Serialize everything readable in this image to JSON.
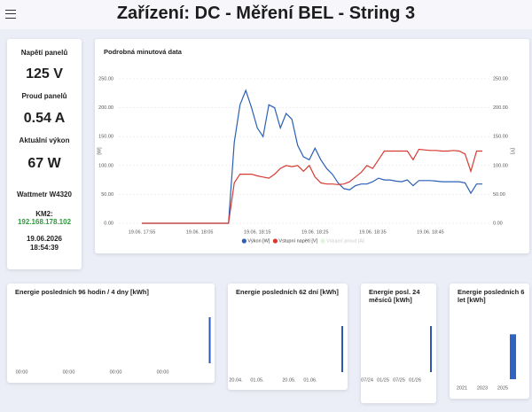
{
  "header": {
    "title": "Zařízení: DC - Měření BEL - String 3"
  },
  "panel": {
    "voltage_label": "Napětí panelů",
    "voltage": "125 V",
    "current_label": "Proud panelů",
    "current": "0.54 A",
    "power_label": "Aktuální výkon",
    "power": "67 W",
    "device": "Wattmetr W4320",
    "km_label": "KM2:",
    "ip": "192.168.178.102",
    "date": "19.06.2026",
    "time": "18:54:39"
  },
  "chart_data": [
    {
      "type": "line",
      "title": "Podrobná minutová data",
      "ylabel": "[W]",
      "y2label": "[V]",
      "categories": [
        null,
        null,
        null,
        null,
        "19.06. 17:55",
        null,
        null,
        null,
        null,
        null,
        null,
        null,
        null,
        null,
        "19.06. 18:05",
        null,
        null,
        null,
        null,
        null,
        null,
        null,
        null,
        null,
        "19.06. 18:15",
        null,
        null,
        null,
        null,
        null,
        null,
        null,
        null,
        null,
        "19.06. 18:25",
        null,
        null,
        null,
        null,
        null,
        null,
        null,
        null,
        null,
        "19.06. 18:35",
        null,
        null,
        null,
        null,
        null,
        null,
        null,
        null,
        null,
        "19.06. 18:45",
        null,
        null,
        null,
        null,
        null,
        null,
        null,
        null,
        null
      ],
      "series": [
        {
          "name": "Výkon [W]",
          "color": "#2a5fb5",
          "values": [
            null,
            null,
            null,
            null,
            0,
            0,
            0,
            0,
            0,
            0,
            0,
            0,
            0,
            0,
            0,
            0,
            0,
            0,
            0,
            0,
            140,
            205,
            230,
            200,
            165,
            150,
            205,
            200,
            165,
            190,
            180,
            135,
            115,
            110,
            130,
            110,
            95,
            85,
            70,
            60,
            58,
            65,
            68,
            68,
            72,
            78,
            75,
            75,
            73,
            72,
            75,
            65,
            74,
            74,
            74,
            73,
            72,
            72,
            72,
            72,
            70,
            52,
            68,
            68
          ]
        },
        {
          "name": "Vstupní napětí [V]",
          "color": "#d83a32",
          "axis": "y2",
          "values": [
            null,
            null,
            null,
            null,
            0,
            0,
            0,
            0,
            0,
            0,
            0,
            0,
            0,
            0,
            0,
            0,
            0,
            0,
            0,
            0,
            70,
            85,
            85,
            85,
            82,
            80,
            78,
            85,
            95,
            100,
            98,
            100,
            90,
            100,
            80,
            70,
            68,
            68,
            67,
            68,
            72,
            80,
            88,
            100,
            95,
            110,
            125,
            125,
            125,
            125,
            125,
            110,
            128,
            127,
            126,
            126,
            125,
            125,
            126,
            125,
            120,
            90,
            125,
            125
          ]
        },
        {
          "name": "Vstupní proud [A]",
          "color": "#c6ecc0",
          "hidden": true,
          "values": [
            null,
            null,
            null,
            null,
            null,
            null,
            null,
            null,
            null,
            null,
            null,
            null,
            null,
            null,
            null,
            null,
            null,
            null,
            null,
            null,
            null,
            null,
            null,
            null,
            null,
            null,
            null,
            null,
            null,
            null,
            null,
            null,
            null,
            null,
            null,
            null,
            null,
            null,
            null,
            null,
            null,
            null,
            null,
            null,
            null,
            null,
            null,
            null,
            null,
            null,
            null,
            null,
            null,
            null,
            null,
            null,
            null,
            null,
            null,
            null,
            null,
            null,
            null,
            null
          ]
        }
      ],
      "ylim": [
        0,
        250
      ],
      "yticks": [
        {
          "value": 0,
          "label": "0.00"
        },
        {
          "value": 50,
          "label": "50.00"
        },
        {
          "value": 100,
          "label": "100.00"
        },
        {
          "value": 150,
          "label": "150.00"
        },
        {
          "value": 200,
          "label": "200.00"
        },
        {
          "value": 250,
          "label": "250.00"
        }
      ],
      "y2lim": [
        0,
        250
      ],
      "y2ticks": [
        {
          "value": 0,
          "label": "0.00"
        },
        {
          "value": 50,
          "label": "50.00"
        },
        {
          "value": 100,
          "label": "100.00"
        },
        {
          "value": 150,
          "label": "150.00"
        },
        {
          "value": 200,
          "label": "200.00"
        },
        {
          "value": 250,
          "label": "250.00"
        }
      ],
      "grid": true,
      "legend": "bottom"
    },
    {
      "type": "bar",
      "title": "Energie posledních 96 hodin / 4 dny [kWh]",
      "categories": [
        "00:00",
        "00:00",
        "00:00",
        "00:00",
        null
      ],
      "values": [
        0,
        0,
        0,
        0,
        0.8
      ],
      "color": "#2e57b0",
      "ylim": [
        0,
        1
      ]
    },
    {
      "type": "bar",
      "title": "Energie posledních 62 dní [kWh]",
      "categories": [
        "20.04.",
        null,
        "01.05.",
        null,
        null,
        "20.05.",
        null,
        "01.06.",
        null,
        null,
        null
      ],
      "values": [
        0,
        0,
        0,
        0,
        0,
        0,
        0,
        0,
        0,
        0,
        0.8
      ],
      "color": "#2e57b0",
      "ylim": [
        0,
        1
      ]
    },
    {
      "type": "bar",
      "title": "Energie posl. 24 měsíců [kWh]",
      "categories": [
        "07/24",
        "01/25",
        "07/25",
        "01/26",
        null
      ],
      "values": [
        0,
        0,
        0,
        0,
        0.8
      ],
      "color": "#2e57b0",
      "ylim": [
        0,
        1
      ]
    },
    {
      "type": "bar",
      "title": "Energie posledních 6 let [kWh]",
      "categories": [
        "2021",
        null,
        "2023",
        null,
        "2025",
        null
      ],
      "values": [
        0,
        0,
        0,
        0,
        0,
        0.78
      ],
      "color": "#2f63c4",
      "ylim": [
        0,
        1
      ]
    }
  ]
}
